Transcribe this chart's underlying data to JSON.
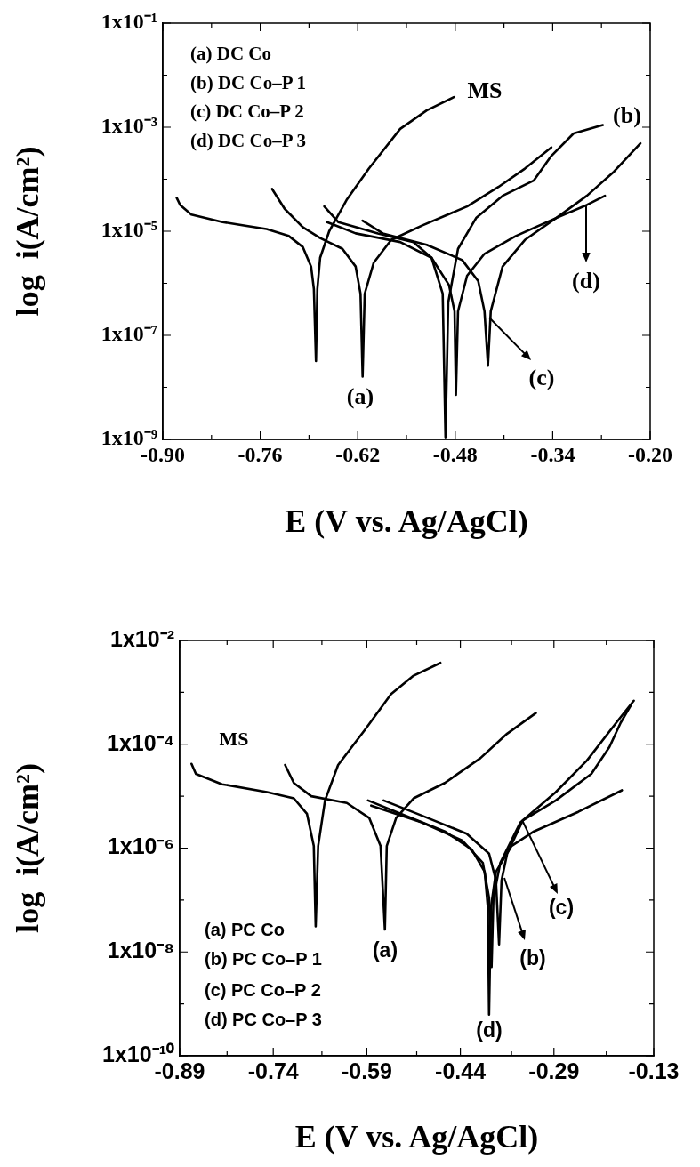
{
  "chart_data": [
    {
      "type": "line",
      "xlabel": "E (V vs. Ag/AgCl)",
      "ylabel": "log  i(A/cm²)",
      "log": "y",
      "xlim": [
        -0.9,
        -0.2
      ],
      "xticks": [
        {
          "value": -0.9,
          "label": "-0.90"
        },
        {
          "value": -0.83,
          "label": null
        },
        {
          "value": -0.76,
          "label": "-0.76"
        },
        {
          "value": -0.69,
          "label": null
        },
        {
          "value": -0.62,
          "label": "-0.62"
        },
        {
          "value": -0.55,
          "label": null
        },
        {
          "value": -0.48,
          "label": "-0.48"
        },
        {
          "value": -0.41,
          "label": null
        },
        {
          "value": -0.34,
          "label": "-0.34"
        },
        {
          "value": -0.27,
          "label": null
        },
        {
          "value": -0.2,
          "label": "-0.20"
        }
      ],
      "ylim": [
        1e-09,
        0.1
      ],
      "yticks": [
        {
          "value": 1e-09,
          "label": "1x10⁻⁹"
        },
        {
          "value": 1e-08,
          "label": null
        },
        {
          "value": 1e-07,
          "label": "1x10⁻⁷"
        },
        {
          "value": 1e-06,
          "label": null
        },
        {
          "value": 1e-05,
          "label": "1x10⁻⁵"
        },
        {
          "value": 0.0001,
          "label": null
        },
        {
          "value": 0.001,
          "label": "1x10⁻³"
        },
        {
          "value": 0.01,
          "label": null
        },
        {
          "value": 0.1,
          "label": "1x10⁻¹"
        }
      ],
      "series": [
        {
          "color": "#000000",
          "x": [
            -0.88,
            -0.875,
            -0.859,
            -0.814,
            -0.751,
            -0.719,
            -0.699,
            -0.687,
            -0.683,
            -0.68,
            -0.678,
            -0.674,
            -0.661,
            -0.636,
            -0.604,
            -0.559,
            -0.521,
            -0.482
          ],
          "values": [
            4.4e-05,
            3.2e-05,
            2.1e-05,
            1.5e-05,
            1.1e-05,
            8.1e-06,
            5e-06,
            2.1e-06,
            7.8e-07,
            3.2e-08,
            7.8e-07,
            3.1e-06,
            1e-05,
            4e-05,
            0.00016,
            0.00093,
            0.0021,
            0.0038
          ]
        },
        {
          "color": "#000000",
          "x": [
            -0.743,
            -0.725,
            -0.699,
            -0.674,
            -0.642,
            -0.623,
            -0.616,
            -0.613,
            -0.61,
            -0.597,
            -0.572,
            -0.527,
            -0.463,
            -0.418,
            -0.38,
            -0.342
          ],
          "values": [
            6.5e-05,
            2.7e-05,
            1.2e-05,
            7.4e-06,
            4.6e-06,
            2.1e-06,
            6.3e-07,
            1.6e-08,
            6.3e-07,
            2.5e-06,
            6.8e-06,
            1.3e-05,
            3e-05,
            7.1e-05,
            0.00016,
            0.00041
          ]
        },
        {
          "color": "#000000",
          "x": [
            -0.668,
            -0.648,
            -0.591,
            -0.54,
            -0.514,
            -0.498,
            -0.494,
            -0.49,
            -0.476,
            -0.45,
            -0.412,
            -0.367,
            -0.342,
            -0.31,
            -0.268
          ],
          "values": [
            3e-05,
            1.5e-05,
            9.1e-06,
            6.2e-06,
            3.1e-06,
            6.3e-07,
            1.1e-09,
            4.3e-07,
            4.6e-06,
            1.8e-05,
            4.8e-05,
            9.5e-05,
            0.00028,
            0.00076,
            0.0011
          ]
        },
        {
          "color": "#000000",
          "x": [
            -0.613,
            -0.584,
            -0.521,
            -0.47,
            -0.447,
            -0.438,
            -0.433,
            -0.429,
            -0.412,
            -0.38,
            -0.335,
            -0.291,
            -0.252,
            -0.214
          ],
          "values": [
            1.6e-05,
            9.1e-06,
            5.5e-06,
            2.8e-06,
            1.1e-06,
            2.9e-07,
            2.6e-08,
            2.9e-07,
            2.1e-06,
            6.8e-06,
            1.8e-05,
            4.8e-05,
            0.00014,
            0.00049
          ]
        },
        {
          "color": "#000000",
          "x": [
            -0.664,
            -0.623,
            -0.559,
            -0.514,
            -0.489,
            -0.481,
            -0.479,
            -0.476,
            -0.463,
            -0.438,
            -0.393,
            -0.335,
            -0.291,
            -0.265
          ],
          "values": [
            1.5e-05,
            9.1e-06,
            6.2e-06,
            3.1e-06,
            9.3e-07,
            2.9e-07,
            7.2e-09,
            2.9e-07,
            1.4e-06,
            3.7e-06,
            8.1e-06,
            1.8e-05,
            3.2e-05,
            4.8e-05
          ]
        }
      ],
      "annotations": [
        "(a) DC Co",
        "(b) DC Co–P 1",
        "(c) DC Co–P 2",
        "(d) DC Co–P 3",
        "MS",
        "(a)",
        "(b)",
        "(c)",
        "(d)"
      ]
    },
    {
      "type": "line",
      "xlabel": "E (V vs. Ag/AgCl)",
      "ylabel": "log  i(A/cm²)",
      "log": "y",
      "xlim": [
        -0.89,
        -0.13
      ],
      "xticks": [
        {
          "value": -0.89,
          "label": "-0.89"
        },
        {
          "value": -0.814,
          "label": null
        },
        {
          "value": -0.74,
          "label": "-0.74"
        },
        {
          "value": -0.662,
          "label": null
        },
        {
          "value": -0.59,
          "label": "-0.59"
        },
        {
          "value": -0.51,
          "label": null
        },
        {
          "value": -0.44,
          "label": "-0.44"
        },
        {
          "value": -0.358,
          "label": null
        },
        {
          "value": -0.29,
          "label": "-0.29"
        },
        {
          "value": -0.206,
          "label": null
        },
        {
          "value": -0.13,
          "label": "-0.13"
        }
      ],
      "ylim": [
        1e-10,
        0.01
      ],
      "yticks": [
        {
          "value": 1e-10,
          "label": "1x10⁻¹⁰"
        },
        {
          "value": 1e-09,
          "label": null
        },
        {
          "value": 1e-08,
          "label": "1x10⁻⁸"
        },
        {
          "value": 1e-07,
          "label": null
        },
        {
          "value": 1e-06,
          "label": "1x10⁻⁶"
        },
        {
          "value": 1e-05,
          "label": null
        },
        {
          "value": 0.0001,
          "label": "1x10⁻⁴"
        },
        {
          "value": 0.001,
          "label": null
        },
        {
          "value": 0.01,
          "label": "1x10⁻²"
        }
      ],
      "series": [
        {
          "color": "#000000",
          "x": [
            -0.871,
            -0.864,
            -0.822,
            -0.75,
            -0.707,
            -0.686,
            -0.675,
            -0.672,
            -0.668,
            -0.657,
            -0.636,
            -0.593,
            -0.551,
            -0.515,
            -0.472
          ],
          "values": [
            4.2e-05,
            2.7e-05,
            1.7e-05,
            1.2e-05,
            9.1e-06,
            4.6e-06,
            1.1e-06,
            3.1e-08,
            1.1e-06,
            8.3e-06,
            4e-05,
            0.00019,
            0.00093,
            0.0021,
            0.0037
          ]
        },
        {
          "color": "#000000",
          "x": [
            -0.721,
            -0.707,
            -0.679,
            -0.622,
            -0.586,
            -0.568,
            -0.561,
            -0.558,
            -0.543,
            -0.515,
            -0.465,
            -0.408,
            -0.365,
            -0.319
          ],
          "values": [
            4e-05,
            1.8e-05,
            1e-05,
            7.4e-06,
            3.8e-06,
            1.1e-06,
            2.7e-08,
            1.1e-06,
            3.8e-06,
            9.1e-06,
            1.8e-05,
            5.4e-05,
            0.00016,
            0.0004
          ]
        },
        {
          "color": "#000000",
          "x": [
            -0.583,
            -0.501,
            -0.437,
            -0.404,
            -0.394,
            -0.39,
            -0.387,
            -0.376,
            -0.344,
            -0.287,
            -0.237,
            -0.187,
            -0.162
          ],
          "values": [
            6.6e-06,
            3.1e-06,
            1.4e-06,
            5.2e-07,
            1.1e-07,
            5.1e-09,
            1.1e-07,
            5.2e-07,
            3.1e-06,
            1.2e-05,
            4.9e-05,
            0.00029,
            0.00069
          ]
        },
        {
          "color": "#000000",
          "x": [
            -0.563,
            -0.501,
            -0.43,
            -0.394,
            -0.383,
            -0.378,
            -0.374,
            -0.365,
            -0.34,
            -0.287,
            -0.23,
            -0.201,
            -0.183,
            -0.166
          ],
          "values": [
            8.3e-06,
            4.2e-06,
            1.9e-06,
            7.8e-07,
            2.4e-07,
            1.4e-08,
            2.4e-07,
            7.8e-07,
            3.4e-06,
            8.3e-06,
            2.7e-05,
            8.9e-05,
            0.00026,
            0.00058
          ]
        },
        {
          "color": "#000000",
          "x": [
            -0.588,
            -0.536,
            -0.465,
            -0.422,
            -0.401,
            -0.396,
            -0.394,
            -0.391,
            -0.383,
            -0.358,
            -0.322,
            -0.251,
            -0.181
          ],
          "values": [
            8.3e-06,
            4.6e-06,
            2.1e-06,
            9.5e-07,
            3.5e-07,
            7.2e-08,
            6.2e-10,
            7.2e-08,
            3.5e-07,
            1.1e-06,
            2.1e-06,
            5e-06,
            1.3e-05
          ]
        }
      ],
      "annotations": [
        "(a) PC Co",
        "(b) PC Co–P 1",
        "(c) PC Co–P 2",
        "(d) PC Co–P 3",
        "MS",
        "(a)",
        "(b)",
        "(c)",
        "(d)"
      ]
    }
  ]
}
